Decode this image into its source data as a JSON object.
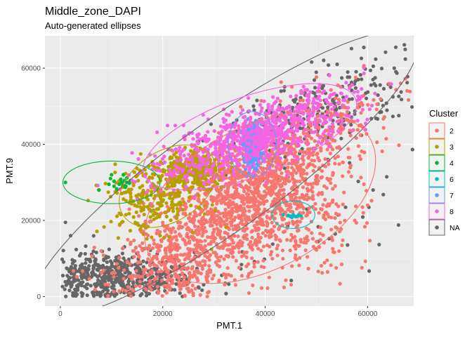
{
  "chart_data": {
    "type": "scatter",
    "title": "Middle_zone_DAPI",
    "subtitle": "Auto-generated ellipses",
    "xlabel": "PMT.1",
    "ylabel": "PMT.9",
    "xlim": [
      -3000,
      69000
    ],
    "ylim": [
      -2500,
      68500
    ],
    "x_ticks": [
      0,
      20000,
      40000,
      60000
    ],
    "y_ticks": [
      0,
      20000,
      40000,
      60000
    ],
    "x_tick_labels": [
      "0",
      "20000",
      "40000",
      "60000"
    ],
    "y_tick_labels": [
      "0",
      "20000",
      "40000",
      "60000"
    ],
    "grid": true,
    "legend": {
      "title": "Cluster",
      "position": "right",
      "entries": [
        {
          "label": "2",
          "color": "#F8766D"
        },
        {
          "label": "3",
          "color": "#B79F00"
        },
        {
          "label": "4",
          "color": "#00BA38"
        },
        {
          "label": "6",
          "color": "#00BFC4"
        },
        {
          "label": "7",
          "color": "#619CFF"
        },
        {
          "label": "8",
          "color": "#F564E3"
        },
        {
          "label": "NA",
          "color": "#666666"
        }
      ]
    },
    "series": [
      {
        "name": "NA",
        "color": "#666666",
        "approx_regions": [
          {
            "center": [
              10000,
              4500
            ],
            "spread": [
              8000,
              3500
            ],
            "n": 650
          },
          {
            "center": [
              50000,
              48000
            ],
            "spread": [
              11000,
              5000
            ],
            "n": 260,
            "rot": 35
          },
          {
            "center": [
              45000,
              13000
            ],
            "spread": [
              20000,
              5000
            ],
            "n": 50,
            "rot": 30
          }
        ],
        "points": [
          [
            65500,
            65500
          ],
          [
            65200,
            60000
          ],
          [
            64500,
            55000
          ],
          [
            1000,
            19500
          ],
          [
            2000,
            16000
          ]
        ]
      },
      {
        "name": "2",
        "color": "#F8766D",
        "approx_regions": [
          {
            "center": [
              38000,
              30000
            ],
            "spread": [
              14000,
              5500
            ],
            "n": 1100,
            "rot": 45
          },
          {
            "center": [
              30000,
              16000
            ],
            "spread": [
              13000,
              5000
            ],
            "n": 450,
            "rot": 40
          },
          {
            "center": [
              45000,
              20000
            ],
            "spread": [
              6000,
              9000
            ],
            "n": 300
          },
          {
            "center": [
              23000,
              7000
            ],
            "spread": [
              5000,
              6000
            ],
            "n": 200
          }
        ],
        "points": [
          [
            60000,
            24000
          ],
          [
            59000,
            23500
          ],
          [
            57500,
            20000
          ],
          [
            54000,
            18000
          ],
          [
            53000,
            15500
          ]
        ]
      },
      {
        "name": "3",
        "color": "#B79F00",
        "approx_regions": [
          {
            "center": [
              18000,
              26000
            ],
            "spread": [
              4500,
              4500
            ],
            "n": 260
          },
          {
            "center": [
              26000,
              33000
            ],
            "spread": [
              3000,
              2300
            ],
            "n": 320,
            "rot": 20
          }
        ],
        "points": []
      },
      {
        "name": "4",
        "color": "#00BA38",
        "approx_regions": [],
        "points": [
          [
            1000,
            30000
          ],
          [
            7500,
            28000
          ],
          [
            9500,
            29500
          ],
          [
            9800,
            31000
          ],
          [
            10000,
            32000
          ],
          [
            10500,
            29000
          ],
          [
            11000,
            28300
          ],
          [
            11500,
            29500
          ],
          [
            12000,
            30000
          ],
          [
            12500,
            30500
          ],
          [
            13000,
            30000
          ],
          [
            13500,
            29800
          ],
          [
            12800,
            29000
          ],
          [
            11800,
            30800
          ],
          [
            12200,
            29200
          ],
          [
            10500,
            30300
          ],
          [
            13000,
            31200
          ],
          [
            12300,
            32000
          ],
          [
            13700,
            30500
          ],
          [
            12700,
            28700
          ]
        ]
      },
      {
        "name": "6",
        "color": "#00BFC4",
        "approx_regions": [],
        "points": [
          [
            43500,
            21500
          ],
          [
            44500,
            21300
          ],
          [
            45000,
            21100
          ],
          [
            45500,
            21500
          ],
          [
            46000,
            21000
          ],
          [
            46500,
            21400
          ],
          [
            47000,
            21200
          ],
          [
            45200,
            20800
          ]
        ]
      },
      {
        "name": "7",
        "color": "#619CFF",
        "approx_regions": [
          {
            "center": [
              37500,
              40000
            ],
            "spread": [
              1000,
              2800
            ],
            "n": 300
          }
        ],
        "points": []
      },
      {
        "name": "8",
        "color": "#F564E3",
        "approx_regions": [
          {
            "center": [
              38000,
              42000
            ],
            "spread": [
              11000,
              3500
            ],
            "n": 800,
            "rot": 28
          }
        ],
        "points": [
          [
            47000,
            54000
          ],
          [
            48500,
            53000
          ],
          [
            49500,
            52000
          ]
        ]
      }
    ],
    "ellipses": [
      {
        "cluster": "NA",
        "color": "#666666",
        "center": [
          32000,
          32000
        ],
        "semi_axes": [
          52000,
          12500
        ],
        "angle_deg": 45
      },
      {
        "cluster": "2",
        "color": "#F8766D",
        "center": [
          39000,
          26000
        ],
        "semi_axes": [
          27000,
          17000
        ],
        "angle_deg": 45
      },
      {
        "cluster": "3",
        "color": "#B79F00",
        "center": [
          21000,
          29000
        ],
        "semi_axes": [
          12000,
          8000
        ],
        "angle_deg": 55
      },
      {
        "cluster": "4",
        "color": "#00BA38",
        "center": [
          10000,
          30000
        ],
        "semi_axes": [
          9500,
          5600
        ],
        "angle_deg": 0
      },
      {
        "cluster": "6",
        "color": "#00BFC4",
        "center": [
          45500,
          21500
        ],
        "semi_axes": [
          4200,
          3600
        ],
        "angle_deg": 0
      },
      {
        "cluster": "7",
        "color": "#619CFF",
        "center": [
          37500,
          40000
        ],
        "semi_axes": [
          4700,
          8600
        ],
        "angle_deg": 0
      },
      {
        "cluster": "8",
        "color": "#F564E3",
        "center": [
          37000,
          42000
        ],
        "semi_axes": [
          23000,
          10000
        ],
        "angle_deg": 28
      }
    ]
  }
}
